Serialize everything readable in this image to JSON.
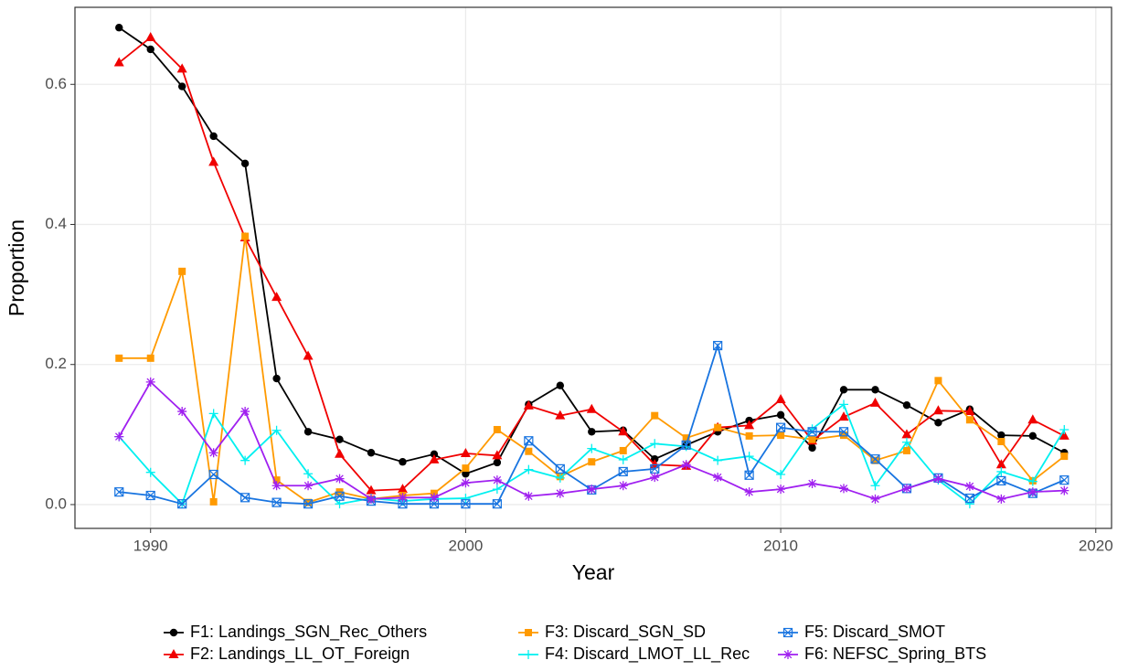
{
  "chart_data": {
    "type": "line",
    "x_label": "Year",
    "y_label": "Proportion",
    "x": [
      1989,
      1990,
      1991,
      1992,
      1993,
      1994,
      1995,
      1996,
      1997,
      1998,
      1999,
      2000,
      2001,
      2002,
      2003,
      2004,
      2005,
      2006,
      2007,
      2008,
      2009,
      2010,
      2011,
      2012,
      2013,
      2014,
      2015,
      2016,
      2017,
      2018,
      2019
    ],
    "xlim": [
      1987.6,
      2020.5
    ],
    "xticks": [
      1990,
      2000,
      2010,
      2020
    ],
    "ylim": [
      -0.034,
      0.71
    ],
    "yticks": [
      {
        "value": 0,
        "label": "0.0"
      },
      {
        "value": 0.2,
        "label": "0.2"
      },
      {
        "value": 0.4,
        "label": "0.4"
      },
      {
        "value": 0.6,
        "label": "0.6"
      }
    ],
    "grid": true,
    "legend_position": "bottom",
    "series": [
      {
        "name": "F1: Landings_SGN_Rec_Others",
        "color": "#000000",
        "marker": "circle",
        "values": [
          0.681,
          0.65,
          0.597,
          0.526,
          0.487,
          0.18,
          0.104,
          0.093,
          0.074,
          0.061,
          0.072,
          0.044,
          0.06,
          0.143,
          0.17,
          0.104,
          0.106,
          0.065,
          0.085,
          0.104,
          0.12,
          0.128,
          0.081,
          0.164,
          0.164,
          0.142,
          0.117,
          0.136,
          0.099,
          0.098,
          0.074
        ]
      },
      {
        "name": "F2: Landings_LL_OT_Foreign",
        "color": "#f00000",
        "marker": "triangle",
        "values": [
          0.631,
          0.667,
          0.622,
          0.489,
          0.381,
          0.296,
          0.212,
          0.072,
          0.02,
          0.022,
          0.064,
          0.073,
          0.07,
          0.141,
          0.127,
          0.136,
          0.104,
          0.057,
          0.055,
          0.11,
          0.113,
          0.15,
          0.091,
          0.125,
          0.145,
          0.1,
          0.134,
          0.133,
          0.057,
          0.121,
          0.098
        ]
      },
      {
        "name": "F3: Discard_SGN_SD",
        "color": "#ff9a00",
        "marker": "square",
        "values": [
          0.209,
          0.209,
          0.333,
          0.004,
          0.383,
          0.035,
          0.003,
          0.018,
          0.008,
          0.013,
          0.016,
          0.052,
          0.107,
          0.076,
          0.04,
          0.061,
          0.077,
          0.127,
          0.095,
          0.11,
          0.098,
          0.099,
          0.093,
          0.099,
          0.063,
          0.077,
          0.177,
          0.121,
          0.09,
          0.034,
          0.069
        ]
      },
      {
        "name": "F4: Discard_LMOT_LL_Rec",
        "color": "#00f0f0",
        "marker": "plus",
        "values": [
          0.097,
          0.046,
          0.001,
          0.13,
          0.063,
          0.106,
          0.044,
          0.001,
          0.009,
          0.005,
          0.008,
          0.009,
          0.022,
          0.05,
          0.038,
          0.08,
          0.064,
          0.087,
          0.083,
          0.063,
          0.069,
          0.043,
          0.108,
          0.143,
          0.027,
          0.089,
          0.035,
          0.001,
          0.047,
          0.033,
          0.107
        ]
      },
      {
        "name": "F5: Discard_SMOT",
        "color": "#1874e0",
        "marker": "boxx",
        "values": [
          0.018,
          0.013,
          0.001,
          0.043,
          0.01,
          0.003,
          0.001,
          0.012,
          0.005,
          0.001,
          0.001,
          0.001,
          0.001,
          0.091,
          0.051,
          0.021,
          0.047,
          0.051,
          0.085,
          0.227,
          0.042,
          0.11,
          0.104,
          0.104,
          0.065,
          0.023,
          0.038,
          0.009,
          0.034,
          0.016,
          0.035
        ]
      },
      {
        "name": "F6: NEFSC_Spring_BTS",
        "color": "#a020f0",
        "marker": "asterisk",
        "values": [
          0.097,
          0.175,
          0.133,
          0.074,
          0.133,
          0.027,
          0.027,
          0.037,
          0.008,
          0.01,
          0.01,
          0.031,
          0.035,
          0.012,
          0.016,
          0.022,
          0.027,
          0.039,
          0.057,
          0.039,
          0.018,
          0.022,
          0.03,
          0.023,
          0.008,
          0.023,
          0.037,
          0.026,
          0.008,
          0.018,
          0.02
        ]
      }
    ]
  }
}
